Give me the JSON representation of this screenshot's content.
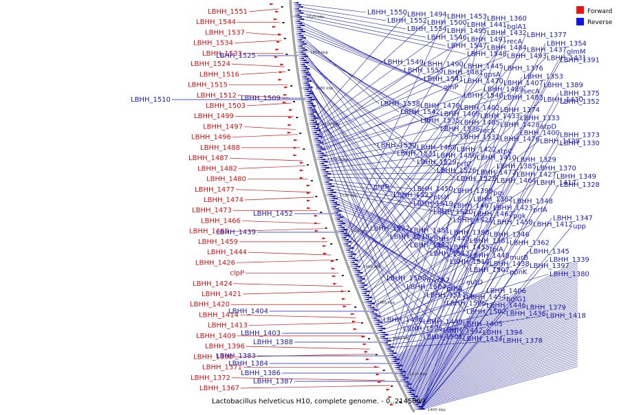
{
  "caption": "Lactobacillus helveticus H10, complete genome. - 0..2145899",
  "legend": [
    {
      "label": "Forward",
      "color": "#ee1111"
    },
    {
      "label": "Reverse",
      "color": "#1111ee"
    }
  ],
  "colors": {
    "forward": "#cc1111",
    "reverse": "#1a1ab0",
    "backbone": "#777777"
  },
  "ticks": [
    "1620 kbp",
    "1600 kbp",
    "1580 kbp",
    "1560 kbp",
    "1540 kbp",
    "1520 kbp",
    "1500 kbp",
    "1480 kbp",
    "1460 kbp",
    "1440 kbp",
    "1420 kbp",
    "1400 kbp"
  ],
  "forward_labels": [
    "LBHH_1551",
    "LBHH_1544",
    "LBHH_1537",
    "LBHH_1534",
    "LBHH_1533",
    "LBHH_1524",
    "LBHH_1516",
    "LBHH_1515",
    "LBHH_1512",
    "LBHH_1503",
    "LBHH_1499",
    "LBHH_1497",
    "LBHH_1496",
    "LBHH_1488",
    "LBHH_1487",
    "LBHH_1482",
    "LBHH_1480",
    "LBHH_1477",
    "LBHH_1474",
    "LBHH_1473",
    "LBHH_1466",
    "LBHH_1465",
    "LBHH_1459",
    "LBHH_1444",
    "LBHH_1426",
    "clpP",
    "LBHH_1424",
    "LBHH_1421",
    "LBHH_1420",
    "LBHH_1414",
    "LBHH_1413",
    "LBHH_1409",
    "LBHH_1396",
    "LBHH_1390",
    "LBHH_1371",
    "LBHH_1372",
    "LBHH_1367"
  ],
  "reverse_left_labels": [
    "LBHH_1525",
    "LBHH_1510",
    "LBHH_1509",
    "LBHH_1452",
    "LBHH_1439",
    "LBHH_1404",
    "LBHH_1403",
    "LBHH_1388",
    "LBHH_1383",
    "LBHH_1384",
    "LBHH_1386",
    "LBHH_1387"
  ],
  "reverse_right_labels": [
    "LBHH_1550",
    "LBHH_1552",
    "LBHH_1554",
    "LBHH_1546",
    "LBHH_1547",
    "LBHH_1548",
    "LBHH_1549",
    "LBHH_1553",
    "LBHH_1541",
    "glnP",
    "LBHH_1540",
    "LBHH_1538",
    "LBHH_1542",
    "LBHH_1535",
    "LBHH_1536",
    "LBHH_1532",
    "LBHH_1530",
    "LBHH_1531",
    "LBHH_1529",
    "LBHH_1526",
    "LBHH_1528",
    "gntR",
    "LBHH_1523",
    "LBHH_1519",
    "LBHH_1520",
    "LBHH_1521",
    "LBHH_1522",
    "LBHH_1518",
    "LBHH_1517",
    "LBHH_1513",
    "LBHH_1514",
    "LBHH_1507",
    "LBHH_1508",
    "LBHH_1504",
    "LBHH_1511",
    "LBHH_1506",
    "LBHH_1502",
    "LBHH_1498",
    "LBHH_1505",
    "LBHH_1501",
    "LBHH_1494",
    "LBHH_1500",
    "LBHH_1495",
    "LBHH_1491",
    "LBHH_1484",
    "LBHH_1493",
    "LBHH_1490",
    "LBHH_1481",
    "LBHH_1470",
    "LBHH_1489",
    "LBHH_1483",
    "LBHH_1478",
    "LBHH_1469",
    "LBHH_1485",
    "recX",
    "LBHH_1476",
    "LBHH_1468",
    "LBHH_1456",
    "prfC",
    "LBHH_1472",
    "LBHH_1464",
    "LBHH_1450",
    "ptsH",
    "LBHH_1467",
    "LBHH_1462",
    "LBHH_1458",
    "LBHH_1451",
    "LBHH_1443",
    "LBHH_1455",
    "LBHH_1448",
    "LBHH_1438",
    "ppnK",
    "mycA2",
    "pthA",
    "LBHH_1454",
    "LBHH_1446",
    "LBHH_1436",
    "LBHH_1449",
    "LBHH_1442",
    "LBHH_1434",
    "LBHH_1453",
    "LBHH_1441",
    "LBHH_1432",
    "recA",
    "LBHH_1437",
    "LBHH_1431",
    "LBHH_1445",
    "gpsA",
    "LBHH_1407",
    "secA",
    "LBHH_1430",
    "LBHH_1402",
    "LBHH_1433",
    "LBHH_1428",
    "LBHH_1400",
    "LBHH_1429",
    "LBHH_1422",
    "LBHH_1410",
    "LBHH_1385",
    "LBHH_1427",
    "LBHH_1417",
    "LBHH_1399",
    "LBHH_1382",
    "LBHH_1423",
    "pgk",
    "LBHH_1412",
    "LBHH_1398",
    "LBHH_1381",
    "tpiA",
    "murB",
    "LBHH_1397",
    "LBHH_1380",
    "eutD",
    "LBHH_1406",
    "bglG1",
    "LBHH_1379",
    "LBHH_1418",
    "LBHH_1405",
    "LBHH_1394",
    "LBHH_1378",
    "LBHH_1360",
    "bglA1",
    "LBHH_1377",
    "LBHH_1354",
    "glmM",
    "LBHH_1391",
    "LBHH_1376",
    "LBHH_1353",
    "LBHH_1389",
    "LBHH_1375",
    "LBHH_1352",
    "LBHH_1374",
    "LBHH_1333",
    "atpD",
    "LBHH_1373",
    "LBHH_1330",
    "atpC",
    "LBHH_1329",
    "LBHH_1370",
    "LBHH_1349",
    "LBHH_1328",
    "pgi",
    "LBHH_1348",
    "prfA",
    "LBHH_1347",
    "upp",
    "LBHH_1346",
    "LBHH_1362",
    "LBHH_1345",
    "LBHH_1339"
  ]
}
